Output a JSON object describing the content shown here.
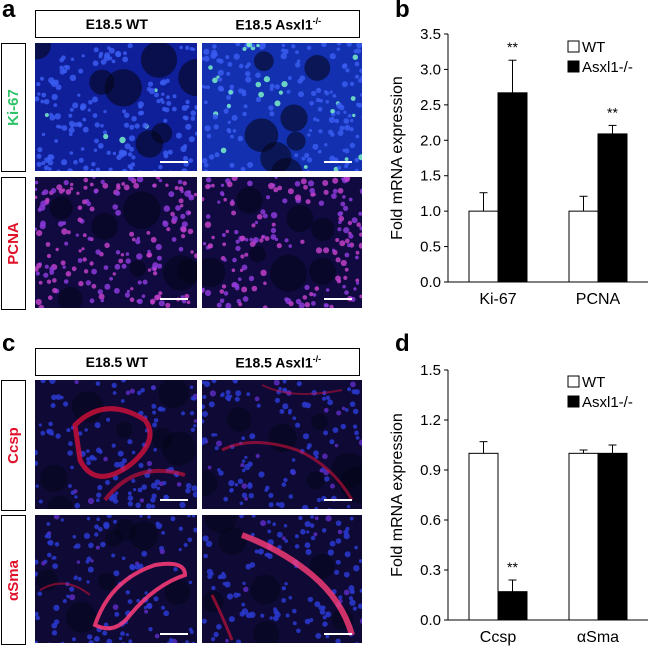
{
  "panels": {
    "a": {
      "letter": "a",
      "header": {
        "wt": "E18.5 WT",
        "ko_base": "E18.5 Asxl1",
        "ko_sup": "-/-"
      },
      "rows": [
        {
          "label": "Ki-67",
          "color": "#2fc46a"
        },
        {
          "label": "PCNA",
          "color": "#e0122a"
        }
      ]
    },
    "b": {
      "letter": "b"
    },
    "c": {
      "letter": "c",
      "header": {
        "wt": "E18.5 WT",
        "ko_base": "E18.5 Asxl1",
        "ko_sup": "-/-"
      },
      "rows": [
        {
          "label": "Ccsp",
          "color": "#e0122a"
        },
        {
          "label": "αSma",
          "color": "#e0122a"
        }
      ]
    },
    "d": {
      "letter": "d"
    }
  },
  "chart_data": [
    {
      "type": "bar",
      "categories": [
        "Ki-67",
        "PCNA"
      ],
      "series": [
        {
          "name": "WT",
          "values": [
            1.0,
            1.0
          ],
          "errors": [
            0.26,
            0.21
          ],
          "color": "#ffffff"
        },
        {
          "name": "Asxl1-/-",
          "values": [
            2.67,
            2.09
          ],
          "errors": [
            0.46,
            0.12
          ],
          "color": "#000000"
        }
      ],
      "significance": [
        "**",
        "**"
      ],
      "ylabel": "Fold mRNA expression",
      "ylim": [
        0,
        3.5
      ],
      "yticks": [
        "0.0",
        "0.5",
        "1.0",
        "1.5",
        "2.0",
        "2.5",
        "3.0",
        "3.5"
      ],
      "legend": "top-right"
    },
    {
      "type": "bar",
      "categories": [
        "Ccsp",
        "αSma"
      ],
      "series": [
        {
          "name": "WT",
          "values": [
            1.0,
            1.0
          ],
          "errors": [
            0.07,
            0.02
          ],
          "color": "#ffffff"
        },
        {
          "name": "Asxl1-/-",
          "values": [
            0.17,
            1.0
          ],
          "errors": [
            0.07,
            0.05
          ],
          "color": "#000000"
        }
      ],
      "significance": [
        "**",
        ""
      ],
      "ylabel": "Fold mRNA expression",
      "ylim": [
        0,
        1.5
      ],
      "yticks": [
        "0.0",
        "0.3",
        "0.6",
        "0.9",
        "1.2",
        "1.5"
      ],
      "legend": "top-right"
    }
  ]
}
